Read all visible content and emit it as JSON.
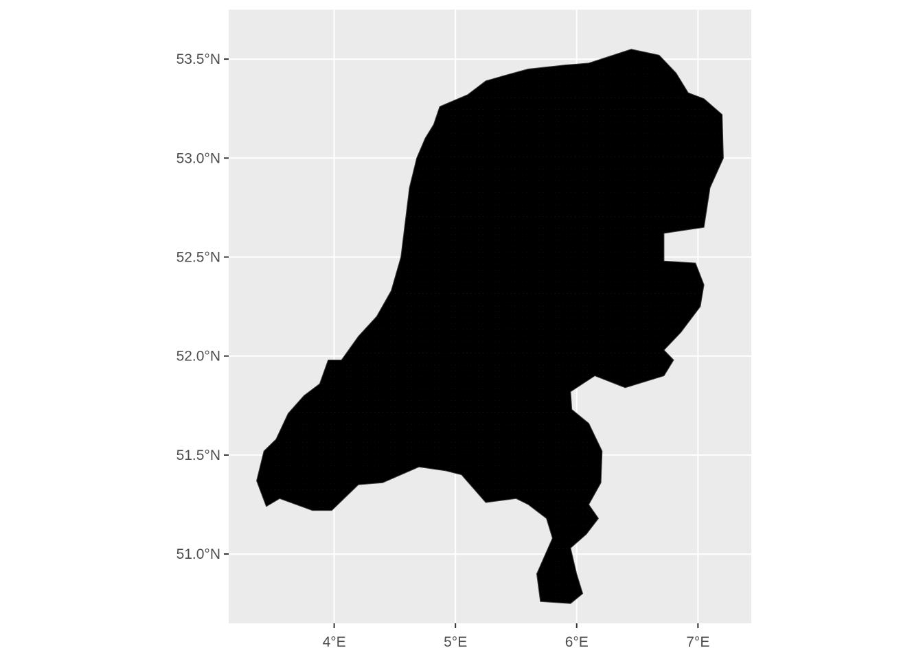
{
  "map": {
    "x_axis": {
      "range": [
        3.13,
        7.44
      ],
      "ticks": [
        {
          "value": 4,
          "label": "4°E"
        },
        {
          "value": 5,
          "label": "5°E"
        },
        {
          "value": 6,
          "label": "6°E"
        },
        {
          "value": 7,
          "label": "7°E"
        }
      ]
    },
    "y_axis": {
      "range": [
        50.65,
        53.75
      ],
      "ticks": [
        {
          "value": 51.0,
          "label": "51.0°N"
        },
        {
          "value": 51.5,
          "label": "51.5°N"
        },
        {
          "value": 52.0,
          "label": "52.0°N"
        },
        {
          "value": 52.5,
          "label": "52.5°N"
        },
        {
          "value": 53.0,
          "label": "53.0°N"
        },
        {
          "value": 53.5,
          "label": "53.5°N"
        }
      ]
    },
    "grid": true,
    "colors": {
      "panel_background": "#EBEBEB",
      "grid_line": "#FFFFFF",
      "point": "#000000",
      "outline": "#404040",
      "tick_mark": "#333333",
      "tick_text": "#4D4D4D"
    },
    "grid_points": {
      "lon_step": 0.033,
      "lat_step": 0.03
    },
    "outline": [
      [
        3.36,
        51.37
      ],
      [
        3.42,
        51.52
      ],
      [
        3.52,
        51.58
      ],
      [
        3.62,
        51.71
      ],
      [
        3.75,
        51.8
      ],
      [
        3.88,
        51.86
      ],
      [
        3.95,
        51.98
      ],
      [
        4.06,
        51.98
      ],
      [
        4.2,
        52.1
      ],
      [
        4.35,
        52.2
      ],
      [
        4.47,
        52.33
      ],
      [
        4.55,
        52.5
      ],
      [
        4.59,
        52.7
      ],
      [
        4.62,
        52.85
      ],
      [
        4.68,
        53.0
      ],
      [
        4.75,
        53.1
      ],
      [
        4.82,
        53.17
      ],
      [
        4.87,
        53.26
      ],
      [
        5.1,
        53.32
      ],
      [
        5.25,
        53.39
      ],
      [
        5.42,
        53.42
      ],
      [
        5.6,
        53.45
      ],
      [
        5.9,
        53.47
      ],
      [
        6.1,
        53.48
      ],
      [
        6.3,
        53.52
      ],
      [
        6.45,
        53.55
      ],
      [
        6.68,
        53.52
      ],
      [
        6.82,
        53.43
      ],
      [
        6.92,
        53.33
      ],
      [
        7.05,
        53.3
      ],
      [
        7.2,
        53.22
      ],
      [
        7.21,
        53.0
      ],
      [
        7.1,
        52.85
      ],
      [
        7.05,
        52.65
      ],
      [
        6.72,
        52.62
      ],
      [
        6.72,
        52.48
      ],
      [
        6.98,
        52.47
      ],
      [
        7.05,
        52.36
      ],
      [
        7.02,
        52.25
      ],
      [
        6.86,
        52.12
      ],
      [
        6.72,
        52.03
      ],
      [
        6.8,
        51.98
      ],
      [
        6.72,
        51.9
      ],
      [
        6.4,
        51.84
      ],
      [
        6.15,
        51.9
      ],
      [
        5.95,
        51.82
      ],
      [
        5.96,
        51.73
      ],
      [
        6.1,
        51.66
      ],
      [
        6.21,
        51.52
      ],
      [
        6.2,
        51.36
      ],
      [
        6.1,
        51.25
      ],
      [
        6.18,
        51.18
      ],
      [
        6.08,
        51.1
      ],
      [
        5.95,
        51.03
      ],
      [
        6.0,
        50.9
      ],
      [
        6.05,
        50.8
      ],
      [
        5.95,
        50.75
      ],
      [
        5.7,
        50.76
      ],
      [
        5.67,
        50.9
      ],
      [
        5.8,
        51.08
      ],
      [
        5.75,
        51.18
      ],
      [
        5.6,
        51.25
      ],
      [
        5.5,
        51.28
      ],
      [
        5.25,
        51.26
      ],
      [
        5.05,
        51.4
      ],
      [
        4.92,
        51.42
      ],
      [
        4.7,
        51.44
      ],
      [
        4.4,
        51.36
      ],
      [
        4.2,
        51.35
      ],
      [
        3.98,
        51.22
      ],
      [
        3.9,
        51.22
      ],
      [
        3.82,
        51.22
      ],
      [
        3.55,
        51.28
      ],
      [
        3.44,
        51.24
      ],
      [
        3.36,
        51.37
      ]
    ]
  }
}
